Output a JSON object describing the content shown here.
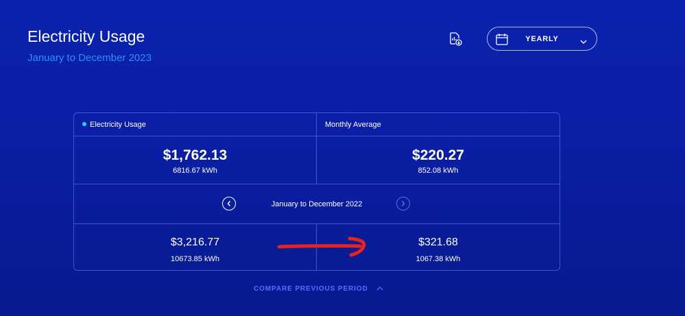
{
  "header": {
    "title": "Electricity Usage",
    "subtitle": "January to December 2023",
    "download_icon": "file-chart-download-icon",
    "period_select": {
      "value": "YEARLY",
      "icon": "calendar-icon"
    }
  },
  "summary": {
    "headers": [
      {
        "label": "Electricity Usage",
        "dot_color": "#1fd0f0"
      },
      {
        "label": "Monthly Average"
      }
    ],
    "current": [
      {
        "cost": "$1,762.13",
        "usage": "6816.67 kWh"
      },
      {
        "cost": "$220.27",
        "usage": "852.08 kWh"
      }
    ],
    "previous_period": {
      "label": "January to December 2022"
    },
    "previous": [
      {
        "cost": "$3,216.77",
        "usage": "10673.85 kWh"
      },
      {
        "cost": "$321.68",
        "usage": "1067.38 kWh"
      }
    ]
  },
  "compare_toggle": {
    "label": "COMPARE PREVIOUS PERIOD"
  },
  "colors": {
    "accent": "#2f8cff",
    "annotation": "#e8231f",
    "compare": "#5b6cff"
  }
}
